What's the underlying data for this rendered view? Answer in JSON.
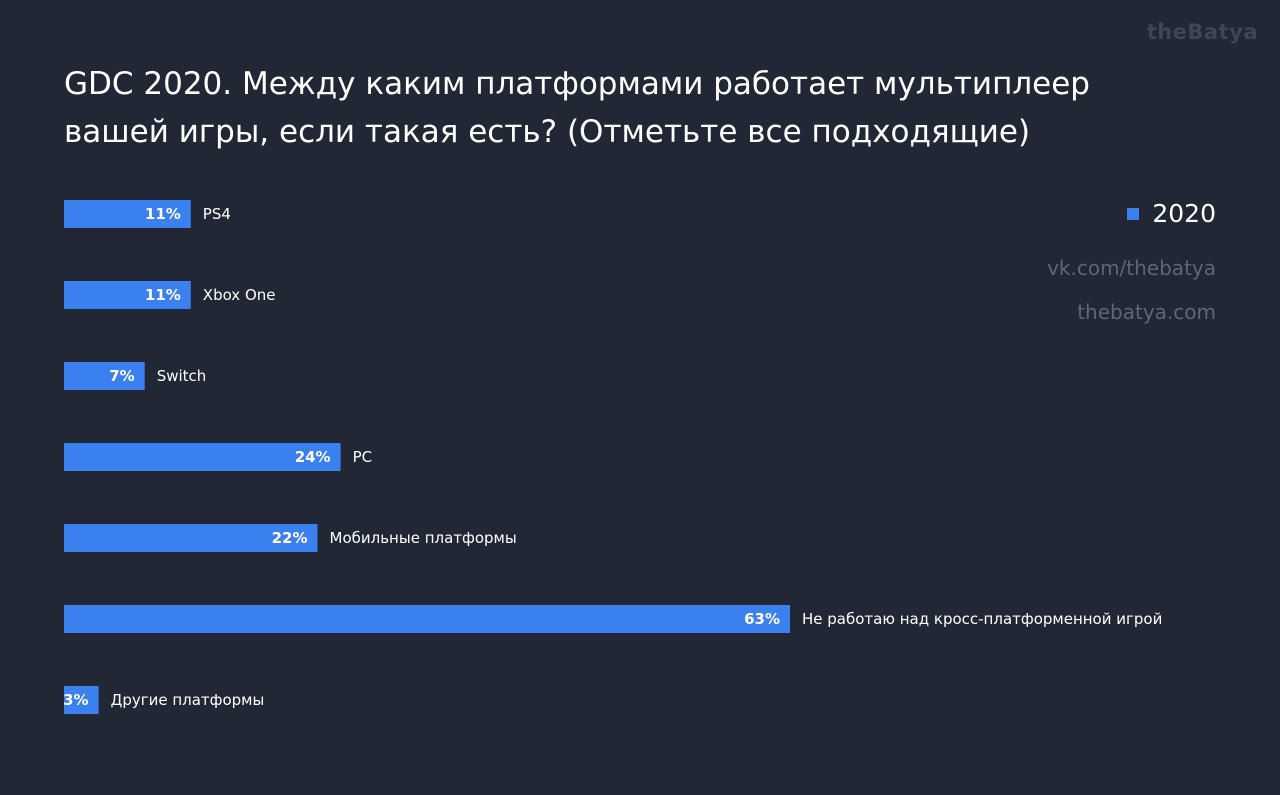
{
  "brand": "theBatya",
  "links": {
    "vk": "vk.com/thebatya",
    "site": "thebatya.com"
  },
  "colors": {
    "background": "#222735",
    "bar": "#3a80ee"
  },
  "chart_data": {
    "type": "bar",
    "orientation": "horizontal",
    "title": "GDC 2020. Между каким платформами работает мультиплеер вашей игры, если такая есть? (Отметьте все подходящие)",
    "categories": [
      "PS4",
      "Xbox One",
      "Switch",
      "PC",
      "Мобильные платформы",
      "Не работаю над кросс-платформенной игрой",
      "Другие платформы"
    ],
    "series": [
      {
        "name": "2020",
        "values": [
          11,
          11,
          7,
          24,
          22,
          63,
          3
        ],
        "labels": [
          "11%",
          "11%",
          "7%",
          "24%",
          "22%",
          "63%",
          "3%"
        ]
      }
    ],
    "xlim": [
      0,
      63
    ],
    "grid": false,
    "legend": "top-right"
  }
}
